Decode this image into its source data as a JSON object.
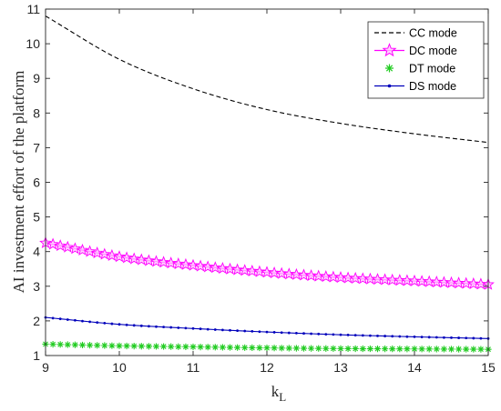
{
  "chart_data": {
    "type": "line",
    "title": "",
    "xlabel": "k",
    "xlabel_subscript": "L",
    "ylabel": "AI investment effort of the platform",
    "xlim": [
      9,
      15
    ],
    "ylim": [
      1,
      11
    ],
    "xticks": [
      "9",
      "10",
      "11",
      "12",
      "13",
      "14",
      "15"
    ],
    "yticks": [
      "1",
      "2",
      "3",
      "4",
      "5",
      "6",
      "7",
      "8",
      "9",
      "10",
      "11"
    ],
    "grid": false,
    "legend_position": "top-right",
    "x": [
      9,
      10,
      11,
      12,
      13,
      14,
      15
    ],
    "series": [
      {
        "name": "CC mode",
        "color": "#000000",
        "style": "dashed",
        "marker": "none",
        "values": [
          10.8,
          9.55,
          8.7,
          8.1,
          7.7,
          7.4,
          7.15
        ]
      },
      {
        "name": "DC mode",
        "color": "#ff00ff",
        "style": "solid",
        "marker": "star",
        "values": [
          4.25,
          3.85,
          3.6,
          3.4,
          3.25,
          3.15,
          3.05
        ]
      },
      {
        "name": "DT mode",
        "color": "#22cc22",
        "style": "none",
        "marker": "asterisk",
        "values": [
          1.33,
          1.28,
          1.25,
          1.22,
          1.2,
          1.19,
          1.18
        ]
      },
      {
        "name": "DS mode",
        "color": "#0000bb",
        "style": "solid",
        "marker": "dot",
        "values": [
          2.1,
          1.9,
          1.78,
          1.68,
          1.6,
          1.54,
          1.49
        ]
      }
    ]
  }
}
